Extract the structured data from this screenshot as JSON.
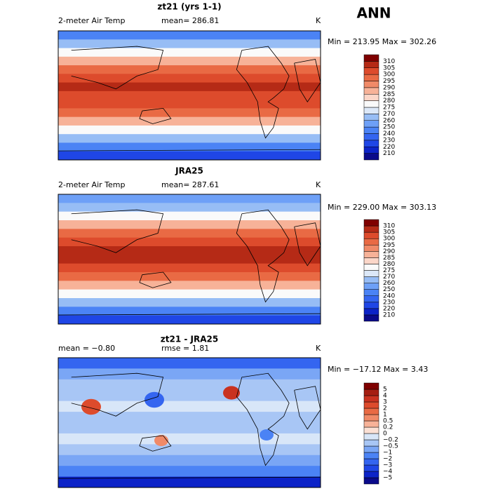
{
  "figure_title": "ANN",
  "panels": [
    {
      "title": "zt21 (yrs 1-1)",
      "variable": "2-meter Air Temp",
      "stat_label": "mean= 286.81",
      "units": "K",
      "range_label": "Min = 213.95 Max = 302.26",
      "colorbar": {
        "labels": [
          "210",
          "220",
          "230",
          "240",
          "250",
          "260",
          "270",
          "275",
          "280",
          "285",
          "290",
          "295",
          "300",
          "305",
          "310"
        ],
        "colors": [
          "#0a0a8a",
          "#0c23c8",
          "#1f46e6",
          "#3465f0",
          "#4b83f5",
          "#6ea0f7",
          "#97bdf5",
          "#dce8f8",
          "#fafafa",
          "#fbd6c8",
          "#f7b298",
          "#f08a68",
          "#e96a44",
          "#dd4b2c",
          "#b52a16",
          "#7f0000"
        ]
      }
    },
    {
      "title": "JRA25",
      "variable": "2-meter Air Temp",
      "stat_label": "mean= 287.61",
      "units": "K",
      "range_label": "Min = 229.00 Max = 303.13",
      "colorbar": {
        "labels": [
          "210",
          "220",
          "230",
          "240",
          "250",
          "260",
          "270",
          "275",
          "280",
          "285",
          "290",
          "295",
          "300",
          "305",
          "310"
        ],
        "colors": [
          "#0a0a8a",
          "#0c23c8",
          "#1f46e6",
          "#3465f0",
          "#4b83f5",
          "#6ea0f7",
          "#97bdf5",
          "#dce8f8",
          "#fafafa",
          "#fbd6c8",
          "#f7b298",
          "#f08a68",
          "#e96a44",
          "#dd4b2c",
          "#b52a16",
          "#7f0000"
        ]
      }
    },
    {
      "title": "zt21 - JRA25",
      "variable": "mean =  −0.80",
      "stat_label": "rmse =   1.81",
      "units": "K",
      "range_label": "Min = −17.12 Max =    3.43",
      "colorbar": {
        "labels": [
          "−5",
          "−4",
          "−3",
          "−2",
          "−1",
          "−0.5",
          "−0.2",
          "0",
          "0.2",
          "0.5",
          "1",
          "2",
          "3",
          "4",
          "5"
        ],
        "colors": [
          "#0a0a8a",
          "#0c23c8",
          "#1f46e6",
          "#3465f0",
          "#4b83f5",
          "#7aa6f5",
          "#a8c6f5",
          "#d8e6f8",
          "#fbe0d4",
          "#f7b298",
          "#f08a68",
          "#e96a44",
          "#dd4b2c",
          "#c93220",
          "#a51e12",
          "#7f0000"
        ]
      }
    }
  ]
}
